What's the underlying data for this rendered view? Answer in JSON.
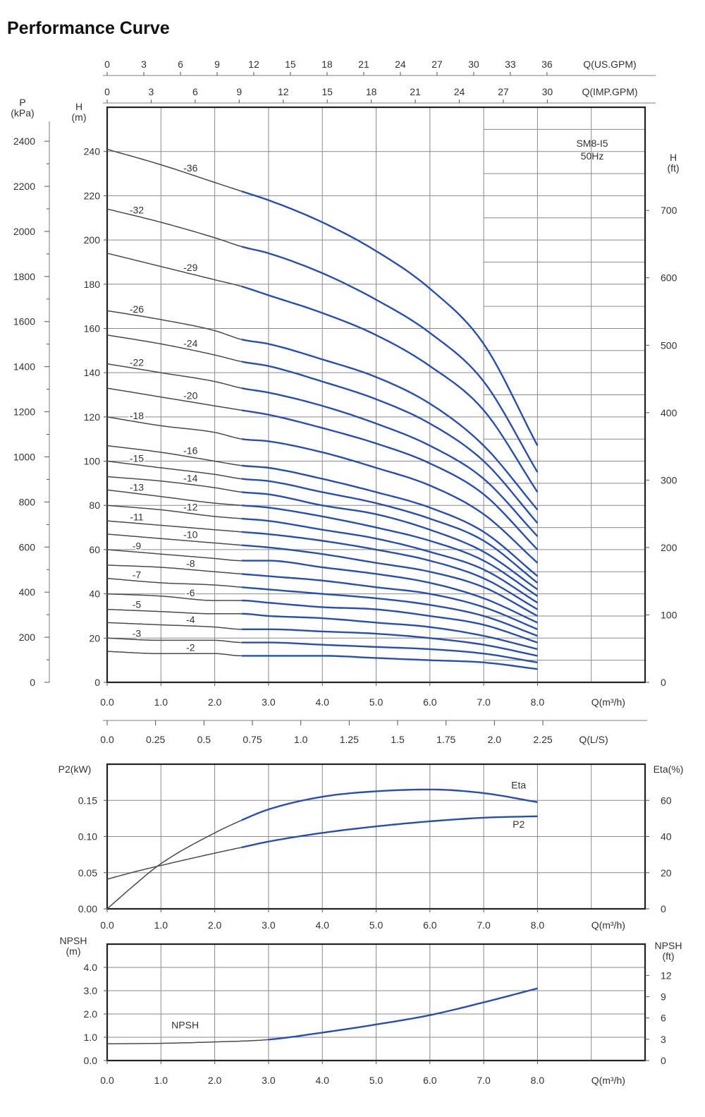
{
  "page_title": "Performance Curve",
  "colors": {
    "curve_blue": "#2a4fa8",
    "curve_grey": "#4a4a4a",
    "grid": "#8a8a8a",
    "frame": "#222222"
  },
  "chart_data": [
    {
      "type": "line",
      "name": "H-Q",
      "model_label": "SM8-I5",
      "freq_label": "50Hz",
      "xlabel": "Q(m³/h)",
      "xlim": [
        0,
        10
      ],
      "x_ticks": [
        0,
        1,
        2,
        3,
        4,
        5,
        6,
        7,
        8
      ],
      "x_tick_labels": [
        "0.0",
        "1.0",
        "2.0",
        "3.0",
        "4.0",
        "5.0",
        "6.0",
        "7.0",
        "8.0"
      ],
      "ylabel_left": "H\n(m)",
      "ylim": [
        0,
        260
      ],
      "y_ticks": [
        0,
        20,
        40,
        60,
        80,
        100,
        120,
        140,
        160,
        180,
        200,
        220,
        240
      ],
      "ylabel_pressure": "P\n(kPa)",
      "pressure_ticks": [
        0,
        200,
        400,
        600,
        800,
        1000,
        1200,
        1400,
        1600,
        1800,
        2000,
        2200,
        2400
      ],
      "ylabel_right": "H\n(ft)",
      "ft_ticks": [
        0,
        100,
        200,
        300,
        400,
        500,
        600,
        700
      ],
      "top_axes": [
        {
          "label": "Q(US.GPM)",
          "ticks": [
            0,
            3,
            6,
            9,
            12,
            15,
            18,
            21,
            24,
            27,
            30,
            33,
            36
          ]
        },
        {
          "label": "Q(IMP.GPM)",
          "ticks": [
            0,
            3,
            6,
            9,
            12,
            15,
            18,
            21,
            24,
            27,
            30
          ]
        }
      ],
      "ls_axis": {
        "label": "Q(L/S)",
        "ticks": [
          "0.0",
          "0.25",
          "0.5",
          "0.75",
          "1.0",
          "1.25",
          "1.5",
          "1.75",
          "2.0",
          "2.25"
        ]
      },
      "recommended_range": [
        2.5,
        8.0
      ],
      "series_x": [
        0,
        1,
        2,
        2.5,
        3,
        4,
        5,
        6,
        7,
        8
      ],
      "series": [
        {
          "name": "-36",
          "values": [
            241,
            234,
            226,
            222,
            218,
            208,
            195,
            178,
            153,
            107
          ]
        },
        {
          "name": "-32",
          "values": [
            214,
            208,
            201,
            197,
            194,
            185,
            173,
            158,
            136,
            95
          ]
        },
        {
          "name": "-29",
          "values": [
            194,
            188,
            182,
            179,
            175,
            167,
            157,
            143,
            123,
            86
          ]
        },
        {
          "name": "-26",
          "values": [
            168,
            164,
            159,
            155,
            153,
            146,
            138,
            126,
            107,
            78
          ]
        },
        {
          "name": "-24",
          "values": [
            157,
            153,
            148,
            145,
            143,
            136,
            128,
            117,
            100,
            72
          ]
        },
        {
          "name": "-22",
          "values": [
            144,
            140,
            136,
            133,
            131,
            125,
            117,
            107,
            92,
            66
          ]
        },
        {
          "name": "-20",
          "values": [
            133,
            129,
            125,
            123,
            121,
            115,
            108,
            99,
            85,
            60
          ]
        },
        {
          "name": "-18",
          "values": [
            120,
            116,
            113,
            110,
            109,
            104,
            97,
            89,
            76,
            54
          ]
        },
        {
          "name": "-16",
          "values": [
            107,
            104,
            100,
            98,
            97,
            92,
            86,
            79,
            68,
            48
          ]
        },
        {
          "name": "-15",
          "values": [
            100,
            97,
            94,
            92,
            91,
            86,
            81,
            74,
            64,
            45
          ]
        },
        {
          "name": "-14",
          "values": [
            93,
            91,
            88,
            86,
            85,
            80,
            76,
            69,
            59,
            42
          ]
        },
        {
          "name": "-13",
          "values": [
            87,
            84,
            81,
            80,
            79,
            75,
            70,
            64,
            55,
            39
          ]
        },
        {
          "name": "-12",
          "values": [
            80,
            78,
            75,
            74,
            73,
            69,
            65,
            59,
            51,
            36
          ]
        },
        {
          "name": "-11",
          "values": [
            73,
            71,
            69,
            68,
            67,
            64,
            60,
            55,
            47,
            33
          ]
        },
        {
          "name": "-10",
          "values": [
            67,
            65,
            63,
            62,
            61,
            58,
            54,
            50,
            43,
            30
          ]
        },
        {
          "name": "-9",
          "values": [
            60,
            58,
            56,
            55,
            55,
            52,
            49,
            45,
            38,
            27
          ]
        },
        {
          "name": "-8",
          "values": [
            53,
            52,
            50,
            49,
            48,
            46,
            43,
            40,
            34,
            24
          ]
        },
        {
          "name": "-7",
          "values": [
            47,
            45,
            44,
            43,
            42,
            40,
            38,
            35,
            30,
            21
          ]
        },
        {
          "name": "-6",
          "values": [
            40,
            39,
            37,
            37,
            36,
            34,
            33,
            30,
            26,
            18
          ]
        },
        {
          "name": "-5",
          "values": [
            33,
            32,
            31,
            31,
            30,
            29,
            27,
            25,
            21,
            15
          ]
        },
        {
          "name": "-4",
          "values": [
            27,
            26,
            25,
            24,
            24,
            23,
            22,
            20,
            17,
            12
          ]
        },
        {
          "name": "-3",
          "values": [
            20,
            19,
            19,
            18,
            18,
            17,
            16,
            15,
            13,
            9
          ]
        },
        {
          "name": "-2",
          "values": [
            14,
            13,
            13,
            12,
            12,
            12,
            11,
            10,
            9,
            6
          ]
        }
      ],
      "series_label_positions": [
        {
          "name": "-36",
          "x": 1.55
        },
        {
          "name": "-32",
          "x": 0.55
        },
        {
          "name": "-29",
          "x": 1.55
        },
        {
          "name": "-26",
          "x": 0.55
        },
        {
          "name": "-24",
          "x": 1.55
        },
        {
          "name": "-22",
          "x": 0.55
        },
        {
          "name": "-20",
          "x": 1.55
        },
        {
          "name": "-18",
          "x": 0.55
        },
        {
          "name": "-16",
          "x": 1.55
        },
        {
          "name": "-15",
          "x": 0.55
        },
        {
          "name": "-14",
          "x": 1.55
        },
        {
          "name": "-13",
          "x": 0.55
        },
        {
          "name": "-12",
          "x": 1.55
        },
        {
          "name": "-11",
          "x": 0.55
        },
        {
          "name": "-10",
          "x": 1.55
        },
        {
          "name": "-9",
          "x": 0.55
        },
        {
          "name": "-8",
          "x": 1.55
        },
        {
          "name": "-7",
          "x": 0.55
        },
        {
          "name": "-6",
          "x": 1.55
        },
        {
          "name": "-5",
          "x": 0.55
        },
        {
          "name": "-4",
          "x": 1.55
        },
        {
          "name": "-3",
          "x": 0.55
        },
        {
          "name": "-2",
          "x": 1.55
        }
      ]
    },
    {
      "type": "line",
      "name": "P2-Eta",
      "xlabel": "Q(m³/h)",
      "xlim": [
        0,
        10
      ],
      "x_ticks": [
        0,
        1,
        2,
        3,
        4,
        5,
        6,
        7,
        8
      ],
      "x_tick_labels": [
        "0.0",
        "1.0",
        "2.0",
        "3.0",
        "4.0",
        "5.0",
        "6.0",
        "7.0",
        "8.0"
      ],
      "ylabel_left": "P2(kW)",
      "ylim": [
        0,
        0.2
      ],
      "y_ticks": [
        "0.00",
        "0.05",
        "0.10",
        "0.15"
      ],
      "ylabel_right": "Eta(%)",
      "eta_ticks": [
        0,
        20,
        40,
        60
      ],
      "series_x": [
        0,
        0.5,
        1,
        2,
        2.5,
        3,
        4,
        5,
        6,
        7,
        8
      ],
      "series": [
        {
          "name": "Eta",
          "axis": "right",
          "values": [
            0,
            13,
            25,
            42,
            49,
            55,
            62,
            65,
            66,
            64,
            59
          ]
        },
        {
          "name": "P2",
          "axis": "left",
          "values": [
            0.041,
            0.051,
            0.06,
            0.077,
            0.085,
            0.093,
            0.105,
            0.114,
            0.121,
            0.126,
            0.128
          ]
        }
      ]
    },
    {
      "type": "line",
      "name": "NPSH",
      "xlabel": "Q(m³/h)",
      "xlim": [
        0,
        10
      ],
      "x_ticks": [
        0,
        1,
        2,
        3,
        4,
        5,
        6,
        7,
        8
      ],
      "x_tick_labels": [
        "0.0",
        "1.0",
        "2.0",
        "3.0",
        "4.0",
        "5.0",
        "6.0",
        "7.0",
        "8.0"
      ],
      "ylabel_left": "NPSH\n(m)",
      "ylim": [
        0,
        5
      ],
      "y_ticks": [
        "0.0",
        "1.0",
        "2.0",
        "3.0",
        "4.0"
      ],
      "ylabel_right": "NPSH\n(ft)",
      "ft_ticks": [
        0,
        3,
        6,
        9,
        12
      ],
      "series_x": [
        0,
        1,
        2,
        3,
        4,
        5,
        6,
        7,
        8
      ],
      "series": [
        {
          "name": "NPSH",
          "values": [
            0.72,
            0.74,
            0.8,
            0.9,
            1.2,
            1.55,
            1.95,
            2.5,
            3.1
          ]
        }
      ]
    }
  ]
}
